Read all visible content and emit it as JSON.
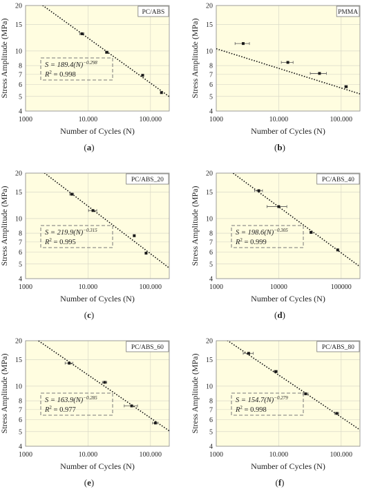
{
  "figure": {
    "panels": [
      {
        "caption": "(a)",
        "caption_letter": "a",
        "chart_data": {
          "type": "scatter",
          "title": "PC/ABS",
          "xlabel": "Number of Cycles (N)",
          "ylabel": "Stress Amplitude (MPa)",
          "xscale": "log",
          "yscale": "log",
          "xlim": [
            1000,
            200000
          ],
          "ylim": [
            4,
            20
          ],
          "x_ticks": [
            1000,
            10000,
            100000
          ],
          "x_tick_labels": [
            "1000",
            "10.000",
            "100.000"
          ],
          "y_ticks": [
            4,
            5,
            6,
            7,
            8,
            10,
            15,
            20
          ],
          "y_tick_labels": [
            "4",
            "5",
            "6",
            "7",
            "8",
            "10",
            "15",
            "20"
          ],
          "points": [
            {
              "x": 8000,
              "y": 13.0,
              "xerr": 600
            },
            {
              "x": 20000,
              "y": 9.8,
              "xerr": 1000
            },
            {
              "x": 75000,
              "y": 6.9,
              "xerr": 3000
            },
            {
              "x": 150000,
              "y": 5.3,
              "xerr": 5000
            }
          ],
          "fit": {
            "a": 189.4,
            "b": -0.298,
            "r2": 0.998
          },
          "equation_text": {
            "S": "S = 189.4(N)",
            "exp": "−0.298",
            "R2": "R",
            "R2_val": " = 0.998"
          }
        }
      },
      {
        "caption": "(b)",
        "caption_letter": "b",
        "chart_data": {
          "type": "scatter",
          "title": "PMMA",
          "xlabel": "Number of Cycles (N)",
          "ylabel": "Stress Amplitude (MPa)",
          "xscale": "log",
          "yscale": "log",
          "xlim": [
            1000,
            200000
          ],
          "ylim": [
            4,
            20
          ],
          "x_ticks": [
            1000,
            10000,
            100000
          ],
          "x_tick_labels": [
            "1000",
            "10.000",
            "100.000"
          ],
          "y_ticks": [
            4,
            5,
            6,
            7,
            8,
            10,
            15,
            20
          ],
          "y_tick_labels": [
            "4",
            "5",
            "6",
            "7",
            "8",
            "10",
            "15",
            "20"
          ],
          "points": [
            {
              "x": 2700,
              "y": 11.2,
              "xerr": 700
            },
            {
              "x": 14000,
              "y": 8.4,
              "xerr": 3000
            },
            {
              "x": 45000,
              "y": 7.1,
              "xerr": 13000
            },
            {
              "x": 120000,
              "y": 5.8,
              "xerr": 6000
            }
          ],
          "fit": {
            "a": 25.4,
            "b": -0.13,
            "r2": null
          },
          "equation_text": null
        }
      },
      {
        "caption": "(c)",
        "caption_letter": "c",
        "chart_data": {
          "type": "scatter",
          "title": "PC/ABS_20",
          "xlabel": "Number of Cycles (N)",
          "ylabel": "Stress Amplitude (MPa)",
          "xscale": "log",
          "yscale": "log",
          "xlim": [
            1000,
            200000
          ],
          "ylim": [
            4,
            20
          ],
          "x_ticks": [
            1000,
            10000,
            100000
          ],
          "x_tick_labels": [
            "1000",
            "10.000",
            "100.000"
          ],
          "y_ticks": [
            4,
            5,
            6,
            7,
            8,
            10,
            15,
            20
          ],
          "y_tick_labels": [
            "4",
            "5",
            "6",
            "7",
            "8",
            "10",
            "15",
            "20"
          ],
          "points": [
            {
              "x": 5500,
              "y": 14.5,
              "xerr": 400
            },
            {
              "x": 12000,
              "y": 11.3,
              "xerr": 1800
            },
            {
              "x": 55000,
              "y": 7.7,
              "xerr": 1500
            },
            {
              "x": 85000,
              "y": 5.9,
              "xerr": 3000
            }
          ],
          "fit": {
            "a": 219.9,
            "b": -0.315,
            "r2": 0.995
          },
          "equation_text": {
            "S": "S = 219.9(N)",
            "exp": "−0.315",
            "R2": "R",
            "R2_val": " = 0.995"
          }
        }
      },
      {
        "caption": "(d)",
        "caption_letter": "d",
        "chart_data": {
          "type": "scatter",
          "title": "PC/ABS_40",
          "xlabel": "Number of Cycles (N)",
          "ylabel": "Stress Amplitude (MPa)",
          "xscale": "log",
          "yscale": "log",
          "xlim": [
            1000,
            200000
          ],
          "ylim": [
            4,
            20
          ],
          "x_ticks": [
            1000,
            10000,
            100000
          ],
          "x_tick_labels": [
            "1000",
            "10000",
            "100000"
          ],
          "y_ticks": [
            4,
            5,
            6,
            7,
            8,
            10,
            15,
            20
          ],
          "y_tick_labels": [
            "4",
            "5",
            "6",
            "7",
            "8",
            "10",
            "15",
            "20"
          ],
          "points": [
            {
              "x": 4800,
              "y": 15.3,
              "xerr": 700
            },
            {
              "x": 10000,
              "y": 12.0,
              "xerr": 3500
            },
            {
              "x": 33000,
              "y": 8.1,
              "xerr": 1500
            },
            {
              "x": 88000,
              "y": 6.2,
              "xerr": 3000
            }
          ],
          "fit": {
            "a": 198.6,
            "b": -0.305,
            "r2": 0.999
          },
          "equation_text": {
            "S": "S = 198.6(N)",
            "exp": "−0.305",
            "R2": "R",
            "R2_val": " = 0.999"
          }
        }
      },
      {
        "caption": "(e)",
        "caption_letter": "e",
        "chart_data": {
          "type": "scatter",
          "title": "PC/ABS_60",
          "xlabel": "Number of Cycles (N)",
          "ylabel": "Stress Amplitude (MPa)",
          "xscale": "log",
          "yscale": "log",
          "xlim": [
            1000,
            200000
          ],
          "ylim": [
            4,
            20
          ],
          "x_ticks": [
            1000,
            10000,
            100000
          ],
          "x_tick_labels": [
            "1000",
            "10.000",
            "100.000"
          ],
          "y_ticks": [
            4,
            5,
            6,
            7,
            8,
            10,
            15,
            20
          ],
          "y_tick_labels": [
            "4",
            "5",
            "6",
            "7",
            "8",
            "10",
            "15",
            "20"
          ],
          "points": [
            {
              "x": 5000,
              "y": 14.2,
              "xerr": 700
            },
            {
              "x": 18500,
              "y": 10.6,
              "xerr": 1500
            },
            {
              "x": 50000,
              "y": 7.4,
              "xerr": 12000
            },
            {
              "x": 120000,
              "y": 5.7,
              "xerr": 12000
            }
          ],
          "fit": {
            "a": 163.9,
            "b": -0.285,
            "r2": 0.977
          },
          "equation_text": {
            "S": "S = 163.9(N)",
            "exp": "−0.285",
            "R2": "R",
            "R2_val": " = 0.977"
          }
        }
      },
      {
        "caption": "(f)",
        "caption_letter": "f",
        "chart_data": {
          "type": "scatter",
          "title": "PC/ABS_80",
          "xlabel": "Number of Cycles (N)",
          "ylabel": "Stress Amplitude (MPa)",
          "xscale": "log",
          "yscale": "log",
          "xlim": [
            1000,
            200000
          ],
          "ylim": [
            4,
            20
          ],
          "x_ticks": [
            1000,
            10000,
            100000
          ],
          "x_tick_labels": [
            "1000",
            "10.000",
            "100.000"
          ],
          "y_ticks": [
            4,
            5,
            6,
            7,
            8,
            10,
            15,
            20
          ],
          "y_tick_labels": [
            "4",
            "5",
            "6",
            "7",
            "8",
            "10",
            "15",
            "20"
          ],
          "points": [
            {
              "x": 3300,
              "y": 16.5,
              "xerr": 600
            },
            {
              "x": 9000,
              "y": 12.5,
              "xerr": 500
            },
            {
              "x": 27000,
              "y": 8.9,
              "xerr": 2500
            },
            {
              "x": 85000,
              "y": 6.6,
              "xerr": 6000
            }
          ],
          "fit": {
            "a": 154.7,
            "b": -0.279,
            "r2": 0.998
          },
          "equation_text": {
            "S": "S = 154.7(N)",
            "exp": "−0.279",
            "R2": "R",
            "R2_val": " = 0.998"
          }
        }
      }
    ],
    "colors": {
      "plot_background": "#fffde0",
      "gridline": "#d9d9c8",
      "marker": "#1a1a1a",
      "fit_line": "#111111",
      "equation_box_border": "#777777"
    }
  }
}
